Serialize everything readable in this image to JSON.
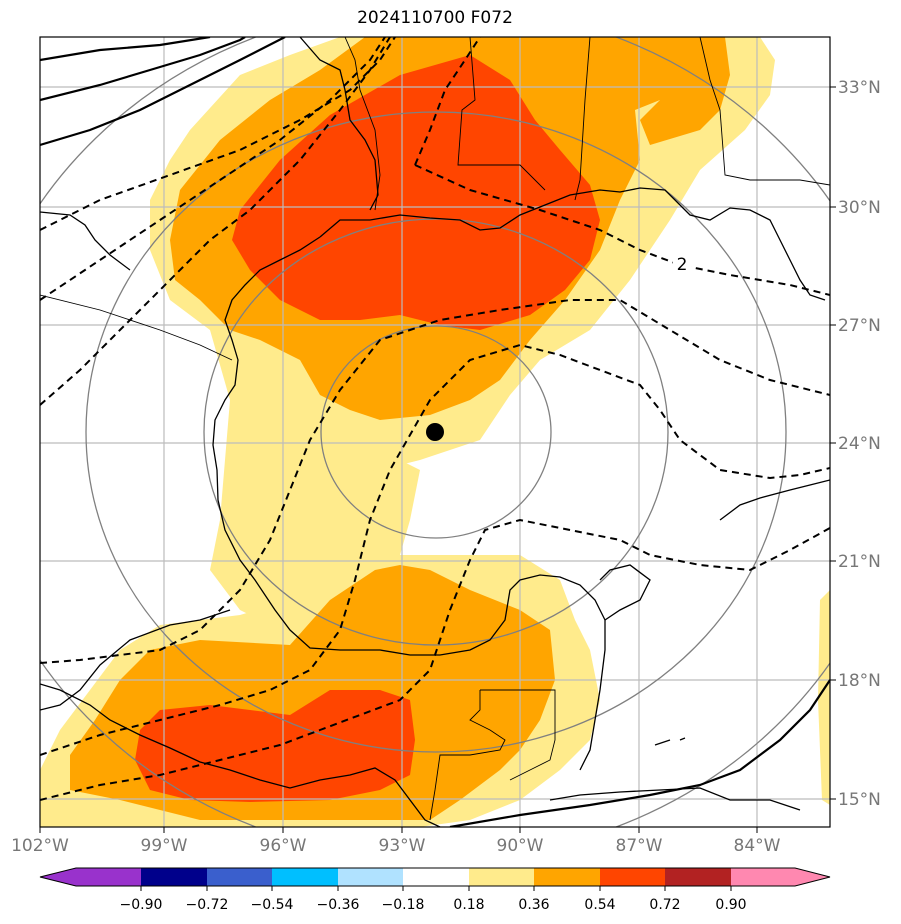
{
  "title": "2024110700 F072",
  "map": {
    "lon_labels": [
      "102°W",
      "99°W",
      "96°W",
      "93°W",
      "90°W",
      "87°W",
      "84°W"
    ],
    "lat_labels": [
      "33°N",
      "30°N",
      "27°N",
      "24°N",
      "21°N",
      "18°N",
      "15°N"
    ],
    "contour_label": "2",
    "colors": {
      "light": "#FFEB8C",
      "orange": "#FFA500",
      "red": "#FF4500",
      "grid": "#bcbcbc",
      "rings": "#808080",
      "coast": "#000000"
    }
  },
  "colorbar": {
    "levels": [
      "−0.90",
      "−0.72",
      "−0.54",
      "−0.36",
      "−0.18",
      "0.18",
      "0.36",
      "0.54",
      "0.72",
      "0.90"
    ],
    "colors": [
      "#9932CC",
      "#00008B",
      "#3A5FCD",
      "#00BFFF",
      "#B0E2FF",
      "#FFFFFF",
      "#FFEB8C",
      "#FFA500",
      "#FF4500",
      "#B22222",
      "#FF88B0"
    ]
  }
}
